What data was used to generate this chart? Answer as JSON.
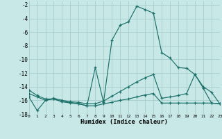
{
  "xlabel": "Humidex (Indice chaleur)",
  "bg_color": "#c8e8e8",
  "grid_color": "#a8cccc",
  "line_color": "#1a7068",
  "xlim": [
    0,
    23
  ],
  "ylim": [
    -18,
    -1.5
  ],
  "yticks": [
    -2,
    -4,
    -6,
    -8,
    -10,
    -12,
    -14,
    -16,
    -18
  ],
  "series1_x": [
    0,
    1,
    2,
    3,
    4,
    5,
    6,
    7,
    8,
    9,
    10,
    11,
    12,
    13,
    14,
    15,
    16,
    17,
    18,
    19,
    20,
    21,
    22,
    23
  ],
  "series1_y": [
    -14.5,
    -15.3,
    -15.8,
    -15.8,
    -16.2,
    -16.3,
    -16.5,
    -16.8,
    -11.2,
    -16.3,
    -7.2,
    -5.0,
    -4.5,
    -2.2,
    -2.7,
    -3.2,
    -9.0,
    -9.8,
    -11.2,
    -11.3,
    -12.2,
    -14.2,
    -16.4,
    -16.5
  ],
  "series2_x": [
    0,
    1,
    2,
    3,
    4,
    5,
    6,
    7,
    8,
    9,
    10,
    11,
    12,
    13,
    14,
    15,
    16,
    17,
    18,
    19,
    20,
    21,
    22,
    23
  ],
  "series2_y": [
    -15.5,
    -17.5,
    -16.0,
    -15.8,
    -16.2,
    -16.4,
    -16.5,
    -16.8,
    -16.8,
    -16.5,
    -16.3,
    -16.0,
    -15.8,
    -15.5,
    -15.2,
    -15.0,
    -16.4,
    -16.4,
    -16.4,
    -16.4,
    -16.4,
    -16.4,
    -16.4,
    -16.5
  ],
  "series3_x": [
    0,
    1,
    2,
    3,
    4,
    5,
    6,
    7,
    8,
    9,
    10,
    11,
    12,
    13,
    14,
    15,
    16,
    17,
    18,
    19,
    20,
    21,
    22,
    23
  ],
  "series3_y": [
    -15.0,
    -15.5,
    -16.0,
    -15.7,
    -16.0,
    -16.2,
    -16.3,
    -16.5,
    -16.5,
    -16.1,
    -15.4,
    -14.7,
    -14.0,
    -13.3,
    -12.7,
    -12.2,
    -15.7,
    -15.5,
    -15.3,
    -15.0,
    -12.2,
    -14.0,
    -14.8,
    -16.5
  ]
}
